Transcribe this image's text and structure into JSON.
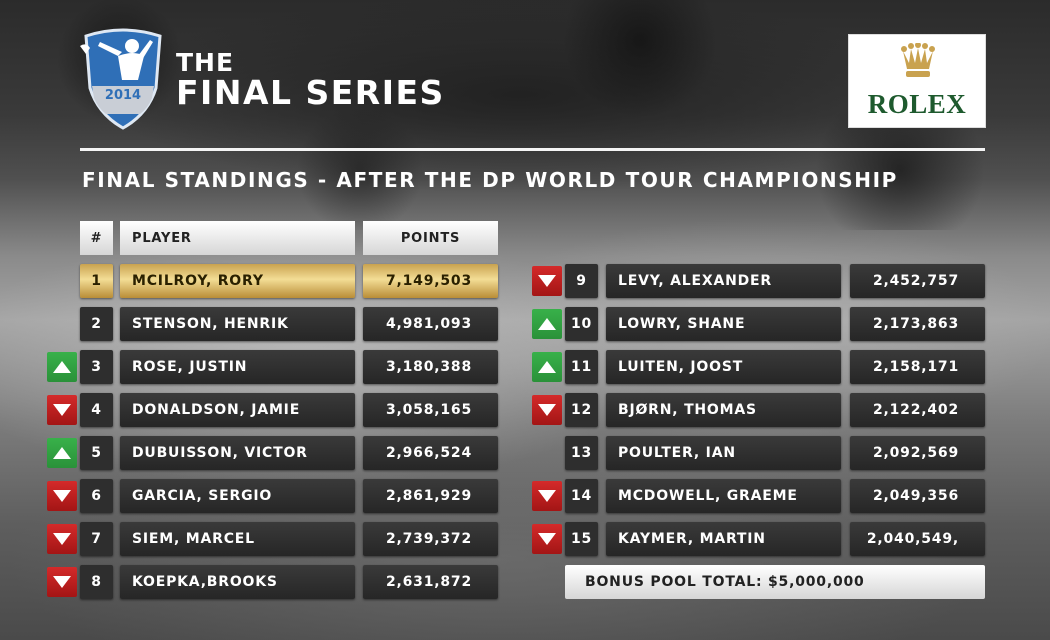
{
  "logo": {
    "year": "2014"
  },
  "header": {
    "title_small": "THE",
    "title_big": "FINAL SERIES",
    "sponsor": "ROLEX"
  },
  "subtitle": "FINAL STANDINGS - AFTER THE DP WORLD TOUR CHAMPIONSHIP",
  "table_headers": {
    "rank": "#",
    "player": "PLAYER",
    "points": "POINTS"
  },
  "colors": {
    "gold": "#e8c870",
    "up": "#38b14a",
    "down": "#c41e1e",
    "rolex_green": "#1e5a2e"
  },
  "standings": [
    {
      "rank": "1",
      "player": "MCILROY, RORY",
      "points": "7,149,503",
      "move": "none"
    },
    {
      "rank": "2",
      "player": "STENSON, HENRIK",
      "points": "4,981,093",
      "move": "none"
    },
    {
      "rank": "3",
      "player": "ROSE, JUSTIN",
      "points": "3,180,388",
      "move": "up"
    },
    {
      "rank": "4",
      "player": "DONALDSON, JAMIE",
      "points": "3,058,165",
      "move": "down"
    },
    {
      "rank": "5",
      "player": "DUBUISSON, VICTOR",
      "points": "2,966,524",
      "move": "up"
    },
    {
      "rank": "6",
      "player": "GARCIA, SERGIO",
      "points": "2,861,929",
      "move": "down"
    },
    {
      "rank": "7",
      "player": "SIEM, MARCEL",
      "points": "2,739,372",
      "move": "down"
    },
    {
      "rank": "8",
      "player": "KOEPKA,BROOKS",
      "points": "2,631,872",
      "move": "down"
    },
    {
      "rank": "9",
      "player": "LEVY, ALEXANDER",
      "points": "2,452,757",
      "move": "down"
    },
    {
      "rank": "10",
      "player": "LOWRY, SHANE",
      "points": "2,173,863",
      "move": "up"
    },
    {
      "rank": "11",
      "player": "LUITEN, JOOST",
      "points": "2,158,171",
      "move": "up"
    },
    {
      "rank": "12",
      "player": "BJØRN, THOMAS",
      "points": "2,122,402",
      "move": "down"
    },
    {
      "rank": "13",
      "player": "POULTER, IAN",
      "points": "2,092,569",
      "move": "none"
    },
    {
      "rank": "14",
      "player": "MCDOWELL, GRAEME",
      "points": "2,049,356",
      "move": "down"
    },
    {
      "rank": "15",
      "player": "KAYMER, MARTIN",
      "points": "2,040,549,",
      "move": "down"
    }
  ],
  "bonus_pool": "BONUS POOL TOTAL: $5,000,000"
}
